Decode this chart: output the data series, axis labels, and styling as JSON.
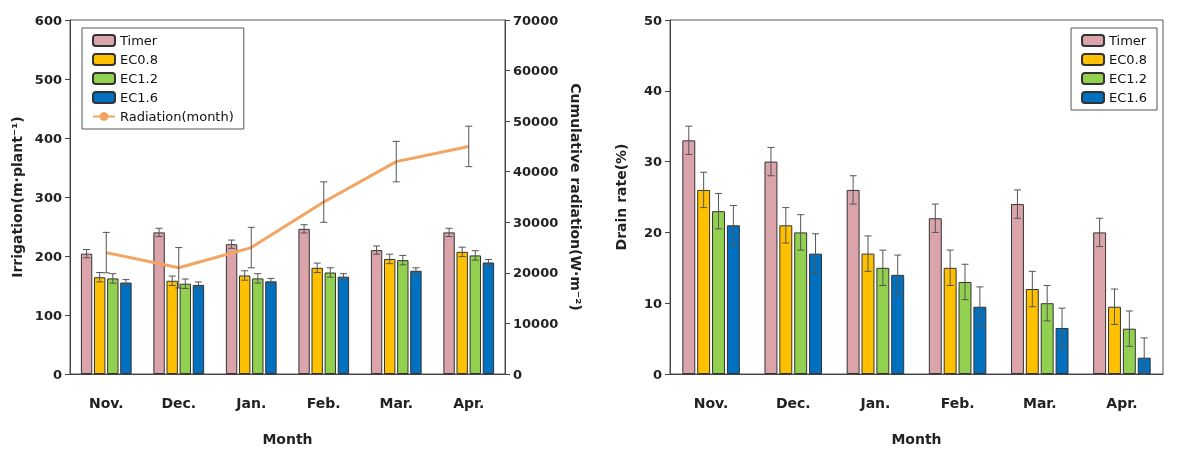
{
  "chart_data": [
    {
      "type": "bar",
      "xlabel": "Month",
      "ylabel": "Irrigation(m·plant⁻¹)",
      "y2label": "Cumulative radiation(W·m⁻²)",
      "categories": [
        "Nov.",
        "Dec.",
        "Jan.",
        "Feb.",
        "Mar.",
        "Apr."
      ],
      "series": [
        {
          "name": "Timer",
          "color": "#dba3aa",
          "values": [
            204,
            240,
            220,
            246,
            210,
            240
          ],
          "errors": [
            7,
            7,
            7,
            7,
            7,
            7
          ]
        },
        {
          "name": "EC0.8",
          "color": "#ffc000",
          "values": [
            164,
            158,
            167,
            180,
            195,
            207
          ],
          "errors": [
            8,
            8,
            8,
            8,
            8,
            8
          ]
        },
        {
          "name": "EC1.2",
          "color": "#92d050",
          "values": [
            162,
            153,
            162,
            172,
            193,
            201
          ],
          "errors": [
            8,
            8,
            8,
            8,
            8,
            8
          ]
        },
        {
          "name": "EC1.6",
          "color": "#0070c0",
          "values": [
            155,
            151,
            157,
            165,
            175,
            189
          ],
          "errors": [
            5,
            5,
            5,
            5,
            5,
            5
          ]
        },
        {
          "name": "Radiation(month)",
          "type": "line",
          "axis": "y2",
          "color": "#f4a460",
          "values": [
            24000,
            21000,
            25000,
            34000,
            42000,
            45000
          ],
          "errors": [
            4000,
            4000,
            4000,
            4000,
            4000,
            4000
          ],
          "marker": "none"
        }
      ],
      "ylim": [
        0,
        600
      ],
      "yticks": [
        0,
        100,
        200,
        300,
        400,
        500,
        600
      ],
      "y2lim": [
        0,
        70000
      ],
      "y2ticks": [
        0,
        10000,
        20000,
        30000,
        40000,
        50000,
        60000,
        70000
      ],
      "grid": false,
      "legend": "top left"
    },
    {
      "type": "bar",
      "xlabel": "Month",
      "ylabel": "Drain rate(%)",
      "categories": [
        "Nov.",
        "Dec.",
        "Jan.",
        "Feb.",
        "Mar.",
        "Apr."
      ],
      "series": [
        {
          "name": "Timer",
          "color": "#dba3aa",
          "values": [
            33,
            30,
            26,
            22,
            24,
            20
          ],
          "errors": [
            2,
            2,
            2,
            2,
            2,
            2
          ]
        },
        {
          "name": "EC0.8",
          "color": "#ffc000",
          "values": [
            26,
            21,
            17,
            15,
            12,
            9.5
          ],
          "errors": [
            2.5,
            2.5,
            2.5,
            2.5,
            2.5,
            2.5
          ]
        },
        {
          "name": "EC1.2",
          "color": "#92d050",
          "values": [
            23,
            20,
            15,
            13,
            10,
            6.4
          ],
          "errors": [
            2.5,
            2.5,
            2.5,
            2.5,
            2.5,
            2.5
          ]
        },
        {
          "name": "EC1.6",
          "color": "#0070c0",
          "values": [
            21,
            17,
            14,
            9.5,
            6.5,
            2.3
          ],
          "errors": [
            2.8,
            2.8,
            2.8,
            2.8,
            2.8,
            [
              0,
              5.1
            ]
          ]
        }
      ],
      "ylim": [
        0,
        50
      ],
      "yticks": [
        0,
        10,
        20,
        30,
        40,
        50
      ],
      "grid": false,
      "legend": "top right"
    }
  ]
}
